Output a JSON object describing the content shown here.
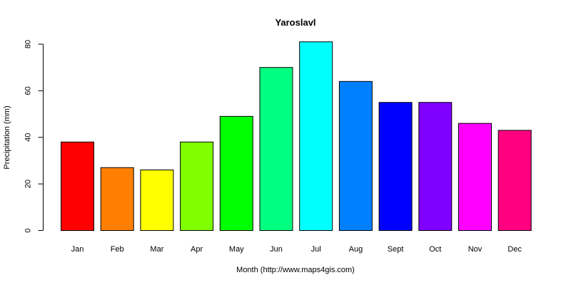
{
  "chart_data": {
    "type": "bar",
    "title": "Yaroslavl",
    "xlabel": "Month (http://www.maps4gis.com)",
    "ylabel": "Precipitation (mm)",
    "categories": [
      "Jan",
      "Feb",
      "Mar",
      "Apr",
      "May",
      "Jun",
      "Jul",
      "Aug",
      "Sept",
      "Oct",
      "Nov",
      "Dec"
    ],
    "values": [
      38,
      27,
      26,
      38,
      49,
      70,
      81,
      64,
      55,
      55,
      46,
      43
    ],
    "colors": [
      "#FF0000",
      "#FF8000",
      "#FFFF00",
      "#80FF00",
      "#00FF00",
      "#00FF80",
      "#00FFFF",
      "#0080FF",
      "#0000FF",
      "#8000FF",
      "#FF00FF",
      "#FF0080"
    ],
    "ylim": [
      0,
      80
    ],
    "yticks": [
      0,
      20,
      40,
      60,
      80
    ],
    "grid": false,
    "legend": "none"
  }
}
